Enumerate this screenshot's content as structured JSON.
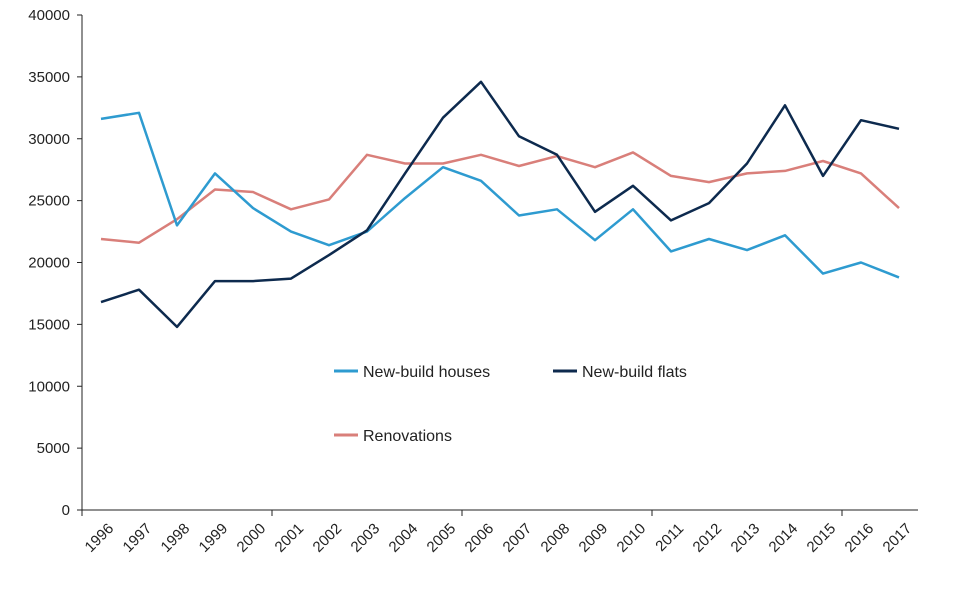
{
  "chart_data": {
    "type": "line",
    "title": "",
    "xlabel": "",
    "ylabel": "",
    "ylim": [
      0,
      40000
    ],
    "y_ticks": [
      "0",
      "5000",
      "10000",
      "15000",
      "20000",
      "25000",
      "30000",
      "35000",
      "40000"
    ],
    "categories": [
      "1996",
      "1997",
      "1998",
      "1999",
      "2000",
      "2001",
      "2002",
      "2003",
      "2004",
      "2005",
      "2006",
      "2007",
      "2008",
      "2009",
      "2010",
      "2011",
      "2012",
      "2013",
      "2014",
      "2015",
      "2016",
      "2017"
    ],
    "grid": false,
    "legend_position": "center",
    "series": [
      {
        "name": "New-build houses",
        "color": "#2e9bd0",
        "values": [
          31600,
          32100,
          23000,
          27200,
          24400,
          22500,
          21400,
          22500,
          25200,
          27700,
          26600,
          23800,
          24300,
          21800,
          24300,
          20900,
          21900,
          21000,
          22200,
          19100,
          20000,
          18800
        ]
      },
      {
        "name": "New-build flats",
        "color": "#0d2a4e",
        "values": [
          16800,
          17800,
          14800,
          18500,
          18500,
          18700,
          20600,
          22600,
          27200,
          31700,
          34600,
          30200,
          28700,
          24100,
          26200,
          23400,
          24800,
          28000,
          32700,
          27000,
          31500,
          30800
        ]
      },
      {
        "name": "Renovations",
        "color": "#d97f7a",
        "values": [
          21900,
          21600,
          23500,
          25900,
          25700,
          24300,
          25100,
          28700,
          28000,
          28000,
          28700,
          27800,
          28600,
          27700,
          28900,
          27000,
          26500,
          27200,
          27400,
          28200,
          27200,
          24400
        ]
      }
    ]
  }
}
